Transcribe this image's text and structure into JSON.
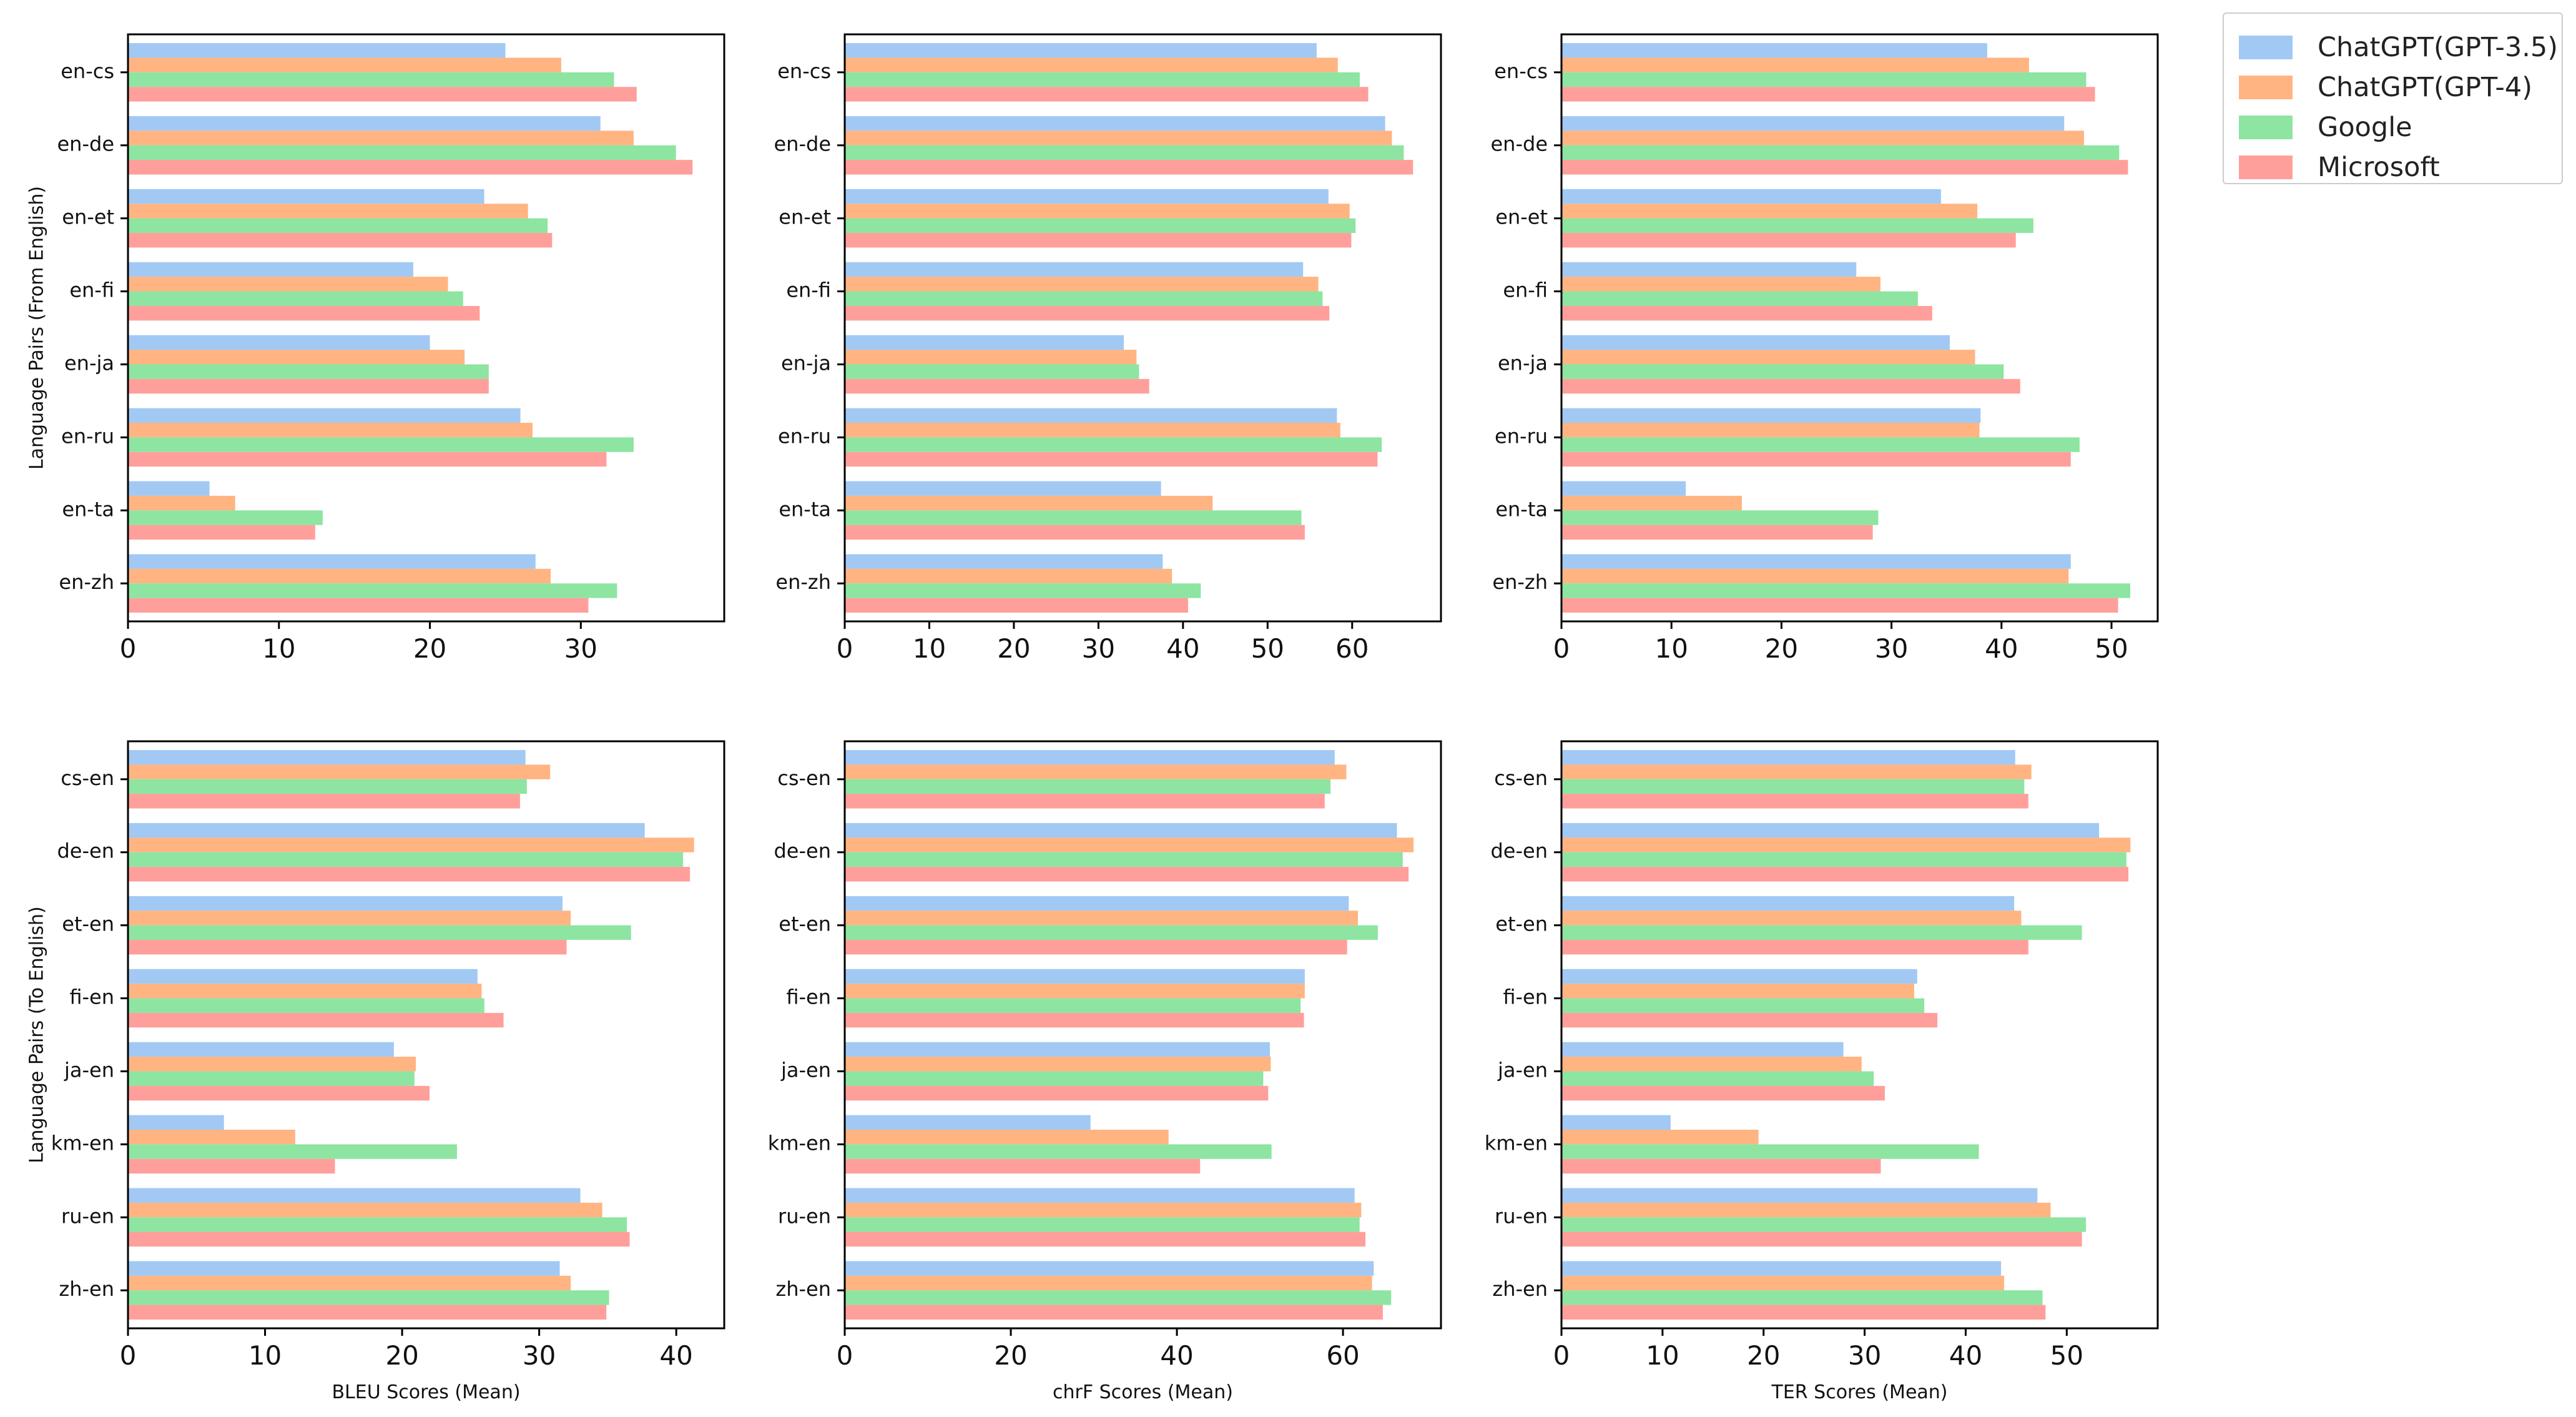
{
  "legend": {
    "items": [
      {
        "label": "ChatGPT(GPT-3.5)",
        "color": "#a1c9f4"
      },
      {
        "label": "ChatGPT(GPT-4)",
        "color": "#ffb482"
      },
      {
        "label": "Google",
        "color": "#8de5a1"
      },
      {
        "label": "Microsoft",
        "color": "#ff9f9b"
      }
    ]
  },
  "chart_data": [
    {
      "type": "bar",
      "orientation": "horizontal",
      "categories": [
        "en-cs",
        "en-de",
        "en-et",
        "en-fi",
        "en-ja",
        "en-ru",
        "en-ta",
        "en-zh"
      ],
      "xlabel": "",
      "ylabel": "Language Pairs (From English)",
      "xlim": [
        0,
        39.5
      ],
      "xticks": [
        0,
        10,
        20,
        30
      ],
      "series": [
        {
          "name": "ChatGPT(GPT-3.5)",
          "values": [
            25.0,
            31.3,
            23.6,
            18.9,
            20.0,
            26.0,
            5.4,
            27.0
          ]
        },
        {
          "name": "ChatGPT(GPT-4)",
          "values": [
            28.7,
            33.5,
            26.5,
            21.2,
            22.3,
            26.8,
            7.1,
            28.0
          ]
        },
        {
          "name": "Google",
          "values": [
            32.2,
            36.3,
            27.8,
            22.2,
            23.9,
            33.5,
            12.9,
            32.4
          ]
        },
        {
          "name": "Microsoft",
          "values": [
            33.7,
            37.4,
            28.1,
            23.3,
            23.9,
            31.7,
            12.4,
            30.5
          ]
        }
      ]
    },
    {
      "type": "bar",
      "orientation": "horizontal",
      "categories": [
        "en-cs",
        "en-de",
        "en-et",
        "en-fi",
        "en-ja",
        "en-ru",
        "en-ta",
        "en-zh"
      ],
      "xlabel": "",
      "ylabel": "",
      "xlim": [
        0,
        70.5
      ],
      "xticks": [
        0,
        10,
        20,
        30,
        40,
        50,
        60
      ],
      "series": [
        {
          "name": "ChatGPT(GPT-3.5)",
          "values": [
            55.8,
            63.9,
            57.2,
            54.2,
            33.0,
            58.2,
            37.4,
            37.6
          ]
        },
        {
          "name": "ChatGPT(GPT-4)",
          "values": [
            58.3,
            64.7,
            59.7,
            56.0,
            34.5,
            58.6,
            43.5,
            38.7
          ]
        },
        {
          "name": "Google",
          "values": [
            60.9,
            66.1,
            60.4,
            56.5,
            34.8,
            63.5,
            54.0,
            42.1
          ]
        },
        {
          "name": "Microsoft",
          "values": [
            61.9,
            67.2,
            59.9,
            57.3,
            36.0,
            63.0,
            54.4,
            40.6
          ]
        }
      ]
    },
    {
      "type": "bar",
      "orientation": "horizontal",
      "categories": [
        "en-cs",
        "en-de",
        "en-et",
        "en-fi",
        "en-ja",
        "en-ru",
        "en-ta",
        "en-zh"
      ],
      "xlabel": "",
      "ylabel": "",
      "xlim": [
        0,
        54.2
      ],
      "xticks": [
        0,
        10,
        20,
        30,
        40,
        50
      ],
      "series": [
        {
          "name": "ChatGPT(GPT-3.5)",
          "values": [
            38.7,
            45.7,
            34.5,
            26.8,
            35.3,
            38.1,
            11.3,
            46.3
          ]
        },
        {
          "name": "ChatGPT(GPT-4)",
          "values": [
            42.5,
            47.5,
            37.8,
            29.0,
            37.6,
            38.0,
            16.4,
            46.1
          ]
        },
        {
          "name": "Google",
          "values": [
            47.7,
            50.7,
            42.9,
            32.4,
            40.2,
            47.1,
            28.8,
            51.7
          ]
        },
        {
          "name": "Microsoft",
          "values": [
            48.5,
            51.5,
            41.3,
            33.7,
            41.7,
            46.3,
            28.3,
            50.6
          ]
        }
      ]
    },
    {
      "type": "bar",
      "orientation": "horizontal",
      "categories": [
        "cs-en",
        "de-en",
        "et-en",
        "fi-en",
        "ja-en",
        "km-en",
        "ru-en",
        "zh-en"
      ],
      "xlabel": "BLEU Scores (Mean)",
      "ylabel": "Language Pairs (To English)",
      "xlim": [
        0,
        43.5
      ],
      "xticks": [
        0,
        10,
        20,
        30,
        40
      ],
      "series": [
        {
          "name": "ChatGPT(GPT-3.5)",
          "values": [
            29.0,
            37.7,
            31.7,
            25.5,
            19.4,
            7.0,
            33.0,
            31.5
          ]
        },
        {
          "name": "ChatGPT(GPT-4)",
          "values": [
            30.8,
            41.3,
            32.3,
            25.8,
            21.0,
            12.2,
            34.6,
            32.3
          ]
        },
        {
          "name": "Google",
          "values": [
            29.1,
            40.5,
            36.7,
            26.0,
            20.9,
            24.0,
            36.4,
            35.1
          ]
        },
        {
          "name": "Microsoft",
          "values": [
            28.6,
            41.0,
            32.0,
            27.4,
            22.0,
            15.1,
            36.6,
            34.9
          ]
        }
      ]
    },
    {
      "type": "bar",
      "orientation": "horizontal",
      "categories": [
        "cs-en",
        "de-en",
        "et-en",
        "fi-en",
        "ja-en",
        "km-en",
        "ru-en",
        "zh-en"
      ],
      "xlabel": "chrF Scores (Mean)",
      "ylabel": "",
      "xlim": [
        0,
        71.8
      ],
      "xticks": [
        0,
        20,
        40,
        60
      ],
      "series": [
        {
          "name": "ChatGPT(GPT-3.5)",
          "values": [
            59.0,
            66.5,
            60.7,
            55.4,
            51.2,
            29.6,
            61.4,
            63.7
          ]
        },
        {
          "name": "ChatGPT(GPT-4)",
          "values": [
            60.4,
            68.5,
            61.8,
            55.4,
            51.3,
            39.0,
            62.2,
            63.5
          ]
        },
        {
          "name": "Google",
          "values": [
            58.5,
            67.2,
            64.2,
            54.9,
            50.4,
            51.4,
            62.0,
            65.8
          ]
        },
        {
          "name": "Microsoft",
          "values": [
            57.8,
            67.9,
            60.5,
            55.3,
            51.0,
            42.8,
            62.7,
            64.8
          ]
        }
      ]
    },
    {
      "type": "bar",
      "orientation": "horizontal",
      "categories": [
        "cs-en",
        "de-en",
        "et-en",
        "fi-en",
        "ja-en",
        "km-en",
        "ru-en",
        "zh-en"
      ],
      "xlabel": "TER Scores (Mean)",
      "ylabel": "",
      "xlim": [
        0,
        59.0
      ],
      "xticks": [
        0,
        10,
        20,
        30,
        40,
        50
      ],
      "series": [
        {
          "name": "ChatGPT(GPT-3.5)",
          "values": [
            44.9,
            53.2,
            44.8,
            35.2,
            27.9,
            10.8,
            47.1,
            43.5
          ]
        },
        {
          "name": "ChatGPT(GPT-4)",
          "values": [
            46.5,
            56.3,
            45.5,
            34.9,
            29.7,
            19.5,
            48.4,
            43.8
          ]
        },
        {
          "name": "Google",
          "values": [
            45.8,
            55.9,
            51.5,
            35.9,
            30.9,
            41.3,
            51.9,
            47.6
          ]
        },
        {
          "name": "Microsoft",
          "values": [
            46.2,
            56.1,
            46.2,
            37.2,
            32.0,
            31.6,
            51.5,
            47.9
          ]
        }
      ]
    }
  ]
}
